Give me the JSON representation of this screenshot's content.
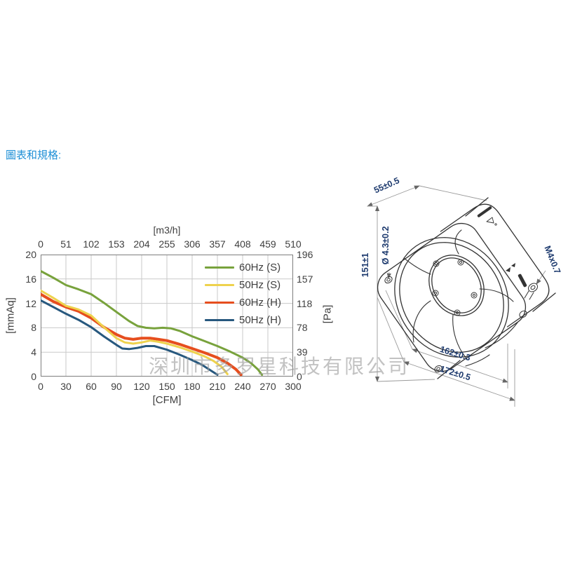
{
  "page": {
    "heading": "圖表和規格:",
    "heading_color": "#1e8fd6",
    "watermark": "深圳市多罗星科技有限公司",
    "watermark_color": "#9e9e9e"
  },
  "chart_data": {
    "type": "line",
    "grid": true,
    "legend_position": "top-right-inside",
    "top_axis": {
      "label": "[m3/h]",
      "ticks": [
        "0",
        "51",
        "102",
        "153",
        "204",
        "255",
        "306",
        "357",
        "408",
        "459",
        "510"
      ]
    },
    "bottom_axis": {
      "label": "[CFM]",
      "ticks": [
        "0",
        "30",
        "60",
        "90",
        "120",
        "150",
        "180",
        "210",
        "240",
        "270",
        "300"
      ],
      "range": [
        0,
        300
      ]
    },
    "left_axis": {
      "label": "[mmAq]",
      "ticks": [
        "20",
        "16",
        "12",
        "8",
        "4",
        "0"
      ],
      "range": [
        0,
        20
      ]
    },
    "right_axis": {
      "label": "[Pa]",
      "ticks": [
        "196",
        "157",
        "118",
        "78",
        "39",
        "0"
      ],
      "range": [
        0,
        196
      ]
    },
    "series": [
      {
        "name": "60Hz (S)",
        "color": "#78a23c",
        "width": 3,
        "points": [
          [
            0,
            17.3
          ],
          [
            15,
            16.2
          ],
          [
            30,
            15.0
          ],
          [
            45,
            14.3
          ],
          [
            60,
            13.5
          ],
          [
            75,
            12.1
          ],
          [
            90,
            10.6
          ],
          [
            105,
            9.1
          ],
          [
            115,
            8.3
          ],
          [
            125,
            8.0
          ],
          [
            135,
            7.9
          ],
          [
            145,
            8.0
          ],
          [
            155,
            7.9
          ],
          [
            165,
            7.5
          ],
          [
            180,
            6.6
          ],
          [
            195,
            5.8
          ],
          [
            210,
            5.0
          ],
          [
            225,
            4.1
          ],
          [
            240,
            3.1
          ],
          [
            250,
            2.2
          ],
          [
            258,
            1.2
          ],
          [
            263,
            0.3
          ]
        ]
      },
      {
        "name": "50Hz (S)",
        "color": "#eed24d",
        "width": 3,
        "points": [
          [
            0,
            14.1
          ],
          [
            15,
            12.9
          ],
          [
            30,
            11.6
          ],
          [
            45,
            11.0
          ],
          [
            60,
            10.0
          ],
          [
            75,
            8.1
          ],
          [
            90,
            6.3
          ],
          [
            100,
            5.6
          ],
          [
            110,
            5.4
          ],
          [
            120,
            5.6
          ],
          [
            130,
            5.9
          ],
          [
            140,
            5.7
          ],
          [
            150,
            5.4
          ],
          [
            165,
            4.8
          ],
          [
            180,
            4.1
          ],
          [
            195,
            3.3
          ],
          [
            205,
            2.6
          ],
          [
            215,
            1.6
          ],
          [
            222,
            0.4
          ]
        ]
      },
      {
        "name": "60Hz (H)",
        "color": "#e64e1e",
        "width": 4,
        "points": [
          [
            0,
            13.5
          ],
          [
            15,
            12.3
          ],
          [
            30,
            11.4
          ],
          [
            45,
            10.7
          ],
          [
            60,
            9.6
          ],
          [
            75,
            8.1
          ],
          [
            90,
            6.9
          ],
          [
            100,
            6.3
          ],
          [
            110,
            6.1
          ],
          [
            120,
            6.3
          ],
          [
            130,
            6.3
          ],
          [
            140,
            6.1
          ],
          [
            150,
            5.9
          ],
          [
            165,
            5.3
          ],
          [
            180,
            4.6
          ],
          [
            195,
            3.9
          ],
          [
            210,
            3.1
          ],
          [
            222,
            2.2
          ],
          [
            232,
            1.2
          ],
          [
            238,
            0.3
          ]
        ]
      },
      {
        "name": "50Hz (H)",
        "color": "#27587e",
        "width": 3,
        "points": [
          [
            0,
            12.5
          ],
          [
            15,
            11.4
          ],
          [
            30,
            10.3
          ],
          [
            45,
            9.3
          ],
          [
            60,
            8.1
          ],
          [
            75,
            6.6
          ],
          [
            90,
            5.2
          ],
          [
            97,
            4.6
          ],
          [
            105,
            4.5
          ],
          [
            115,
            4.7
          ],
          [
            125,
            5.0
          ],
          [
            135,
            5.0
          ],
          [
            150,
            4.4
          ],
          [
            165,
            3.6
          ],
          [
            180,
            2.7
          ],
          [
            192,
            1.9
          ],
          [
            202,
            1.0
          ],
          [
            210,
            0.3
          ]
        ]
      }
    ]
  },
  "fan_drawing": {
    "dim_color": "#1d3a6e",
    "labels": {
      "depth": "55±0.5",
      "height": "151±1",
      "hole_dia": "Ø 4.3±0.2",
      "thread": "M4x0.7",
      "bolt_span": "162±0.3",
      "frame_width": "172±0.5"
    }
  }
}
